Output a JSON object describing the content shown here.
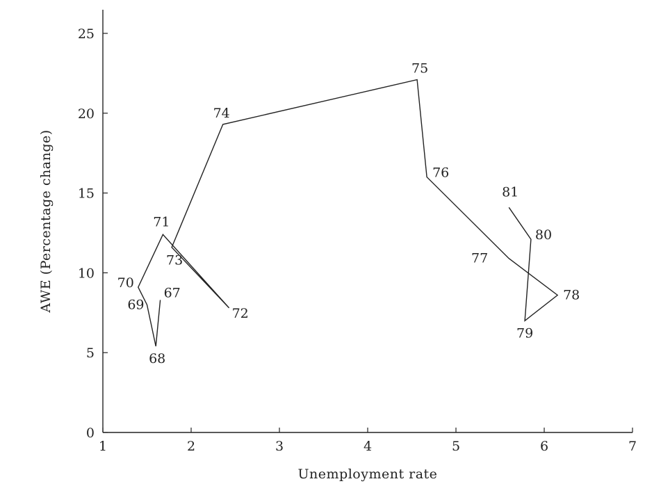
{
  "chart_data": {
    "type": "line",
    "title": "",
    "xlabel": "Unemployment rate",
    "ylabel": "AWE (Percentage change)",
    "xlim": [
      1,
      7
    ],
    "ylim": [
      0,
      26
    ],
    "x_ticks": [
      1,
      2,
      3,
      4,
      5,
      6,
      7
    ],
    "y_ticks": [
      0,
      5,
      10,
      15,
      20,
      25
    ],
    "grid": false,
    "legend": "none",
    "series": [
      {
        "points": [
          {
            "label": "67",
            "x": 1.65,
            "y": 8.3
          },
          {
            "label": "68",
            "x": 1.6,
            "y": 5.4
          },
          {
            "label": "69",
            "x": 1.5,
            "y": 8.0
          },
          {
            "label": "70",
            "x": 1.4,
            "y": 9.1
          },
          {
            "label": "71",
            "x": 1.68,
            "y": 12.4
          },
          {
            "label": "72",
            "x": 2.43,
            "y": 7.8
          },
          {
            "label": "73",
            "x": 1.78,
            "y": 11.6
          },
          {
            "label": "74",
            "x": 2.36,
            "y": 19.3
          },
          {
            "label": "75",
            "x": 4.56,
            "y": 22.1
          },
          {
            "label": "76",
            "x": 4.67,
            "y": 16.0
          },
          {
            "label": "77",
            "x": 5.6,
            "y": 10.9
          },
          {
            "label": "78",
            "x": 6.15,
            "y": 8.6
          },
          {
            "label": "79",
            "x": 5.78,
            "y": 7.0
          },
          {
            "label": "80",
            "x": 5.85,
            "y": 12.1
          },
          {
            "label": "81",
            "x": 5.6,
            "y": 14.1
          }
        ]
      }
    ]
  }
}
